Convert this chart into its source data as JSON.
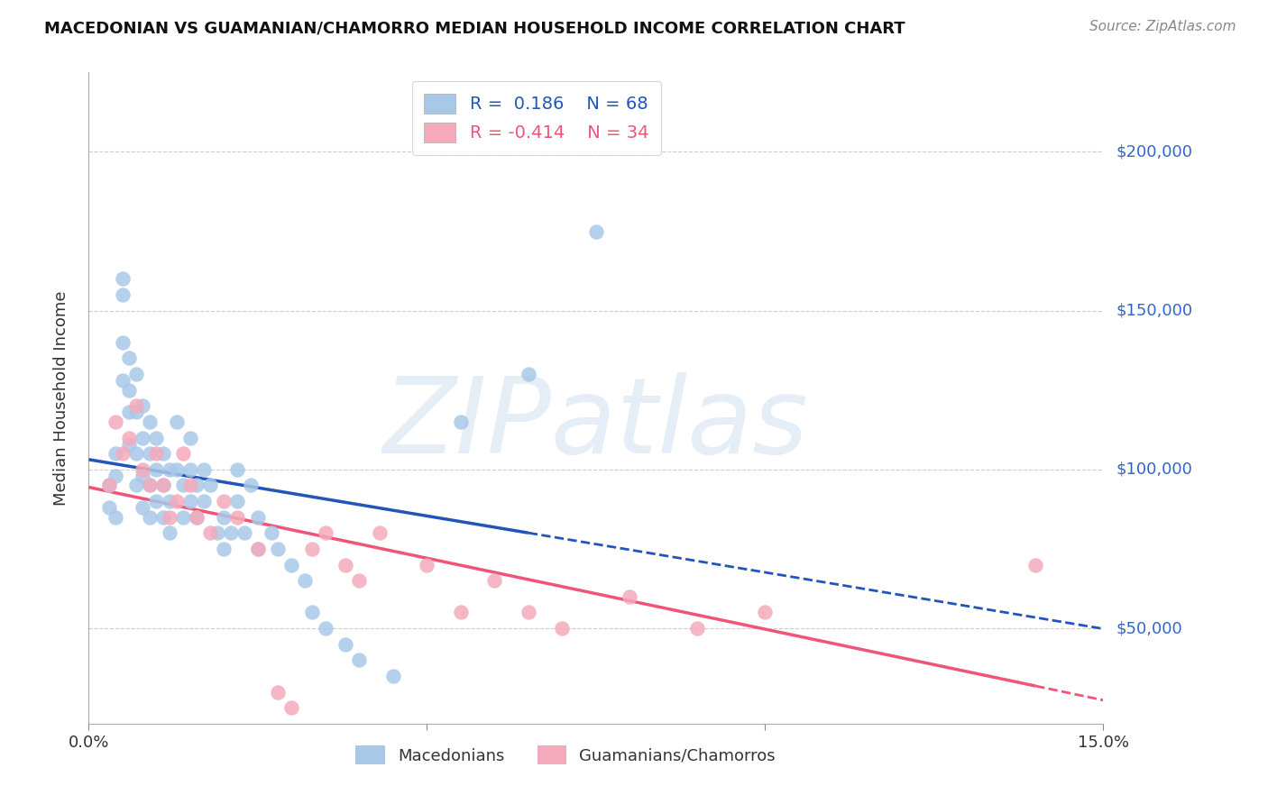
{
  "title": "MACEDONIAN VS GUAMANIAN/CHAMORRO MEDIAN HOUSEHOLD INCOME CORRELATION CHART",
  "source": "Source: ZipAtlas.com",
  "ylabel": "Median Household Income",
  "xlim": [
    0.0,
    0.15
  ],
  "ylim": [
    20000,
    225000
  ],
  "yticks": [
    50000,
    100000,
    150000,
    200000
  ],
  "ytick_labels": [
    "$50,000",
    "$100,000",
    "$150,000",
    "$200,000"
  ],
  "xticks": [
    0.0,
    0.05,
    0.1,
    0.15
  ],
  "xtick_labels": [
    "0.0%",
    "",
    "",
    "15.0%"
  ],
  "blue_R": "0.186",
  "blue_N": "68",
  "pink_R": "-0.414",
  "pink_N": "34",
  "blue_color": "#A8C8E8",
  "pink_color": "#F4AABB",
  "blue_line_color": "#2255BB",
  "pink_line_color": "#EE5577",
  "legend_label_blue": "Macedonians",
  "legend_label_pink": "Guamanians/Chamorros",
  "watermark": "ZIPatlas",
  "blue_x": [
    0.003,
    0.003,
    0.004,
    0.004,
    0.004,
    0.005,
    0.005,
    0.005,
    0.005,
    0.006,
    0.006,
    0.006,
    0.006,
    0.007,
    0.007,
    0.007,
    0.007,
    0.008,
    0.008,
    0.008,
    0.008,
    0.009,
    0.009,
    0.009,
    0.009,
    0.01,
    0.01,
    0.01,
    0.011,
    0.011,
    0.011,
    0.012,
    0.012,
    0.012,
    0.013,
    0.013,
    0.014,
    0.014,
    0.015,
    0.015,
    0.015,
    0.016,
    0.016,
    0.017,
    0.017,
    0.018,
    0.019,
    0.02,
    0.02,
    0.021,
    0.022,
    0.022,
    0.023,
    0.024,
    0.025,
    0.025,
    0.027,
    0.028,
    0.03,
    0.032,
    0.033,
    0.035,
    0.038,
    0.04,
    0.045,
    0.055,
    0.065,
    0.075
  ],
  "blue_y": [
    95000,
    88000,
    105000,
    98000,
    85000,
    160000,
    155000,
    140000,
    128000,
    135000,
    125000,
    118000,
    108000,
    130000,
    118000,
    105000,
    95000,
    120000,
    110000,
    98000,
    88000,
    115000,
    105000,
    95000,
    85000,
    110000,
    100000,
    90000,
    105000,
    95000,
    85000,
    100000,
    90000,
    80000,
    115000,
    100000,
    95000,
    85000,
    110000,
    100000,
    90000,
    95000,
    85000,
    100000,
    90000,
    95000,
    80000,
    85000,
    75000,
    80000,
    100000,
    90000,
    80000,
    95000,
    85000,
    75000,
    80000,
    75000,
    70000,
    65000,
    55000,
    50000,
    45000,
    40000,
    35000,
    115000,
    130000,
    175000
  ],
  "pink_x": [
    0.003,
    0.004,
    0.005,
    0.006,
    0.007,
    0.008,
    0.009,
    0.01,
    0.011,
    0.012,
    0.013,
    0.014,
    0.015,
    0.016,
    0.018,
    0.02,
    0.022,
    0.025,
    0.028,
    0.03,
    0.033,
    0.035,
    0.038,
    0.04,
    0.043,
    0.05,
    0.055,
    0.06,
    0.065,
    0.07,
    0.08,
    0.09,
    0.1,
    0.14
  ],
  "pink_y": [
    95000,
    115000,
    105000,
    110000,
    120000,
    100000,
    95000,
    105000,
    95000,
    85000,
    90000,
    105000,
    95000,
    85000,
    80000,
    90000,
    85000,
    75000,
    30000,
    25000,
    75000,
    80000,
    70000,
    65000,
    80000,
    70000,
    55000,
    65000,
    55000,
    50000,
    60000,
    50000,
    55000,
    70000
  ]
}
